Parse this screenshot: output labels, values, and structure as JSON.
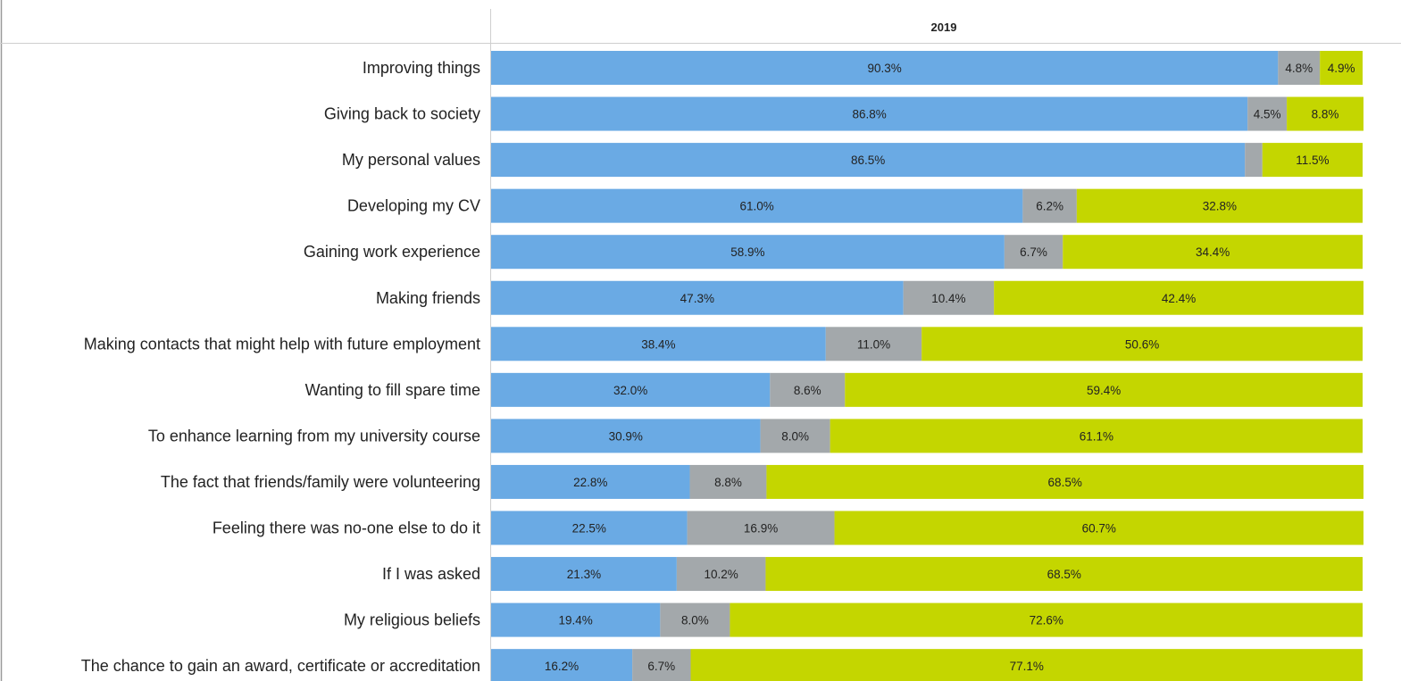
{
  "chart_data": {
    "type": "bar",
    "orientation": "horizontal",
    "stacked": true,
    "title": "",
    "column_header": "2019",
    "xlim": [
      0,
      100
    ],
    "grid": false,
    "legend": "none",
    "categories": [
      "Improving things",
      "Giving back to society",
      "My personal values",
      "Developing my CV",
      "Gaining work experience",
      "Making friends",
      "Making contacts that might help with future employment",
      "Wanting to fill spare time",
      "To enhance learning from my university course",
      "The fact that friends/family were volunteering",
      "Feeling there was no-one else to do it",
      "If I was asked",
      "My religious beliefs",
      "The chance to gain an award, certificate or accreditation"
    ],
    "series": [
      {
        "color": "#6aaae4",
        "values": [
          90.3,
          86.8,
          86.5,
          61.0,
          58.9,
          47.3,
          38.4,
          32.0,
          30.9,
          22.8,
          22.5,
          21.3,
          19.4,
          16.2
        ],
        "labels": [
          "90.3%",
          "86.8%",
          "86.5%",
          "61.0%",
          "58.9%",
          "47.3%",
          "38.4%",
          "32.0%",
          "30.9%",
          "22.8%",
          "22.5%",
          "21.3%",
          "19.4%",
          "16.2%"
        ]
      },
      {
        "color": "#a3a8ab",
        "values": [
          4.8,
          4.5,
          2.0,
          6.2,
          6.7,
          10.4,
          11.0,
          8.6,
          8.0,
          8.8,
          16.9,
          10.2,
          8.0,
          6.7
        ],
        "labels": [
          "4.8%",
          "4.5%",
          "",
          "6.2%",
          "6.7%",
          "10.4%",
          "11.0%",
          "8.6%",
          "8.0%",
          "8.8%",
          "16.9%",
          "10.2%",
          "8.0%",
          "6.7%"
        ]
      },
      {
        "color": "#c4d600",
        "values": [
          4.9,
          8.8,
          11.5,
          32.8,
          34.4,
          42.4,
          50.6,
          59.4,
          61.1,
          68.5,
          60.7,
          68.5,
          72.6,
          77.1
        ],
        "labels": [
          "4.9%",
          "8.8%",
          "11.5%",
          "32.8%",
          "34.4%",
          "42.4%",
          "50.6%",
          "59.4%",
          "61.1%",
          "68.5%",
          "60.7%",
          "68.5%",
          "72.6%",
          "77.1%"
        ]
      }
    ]
  }
}
